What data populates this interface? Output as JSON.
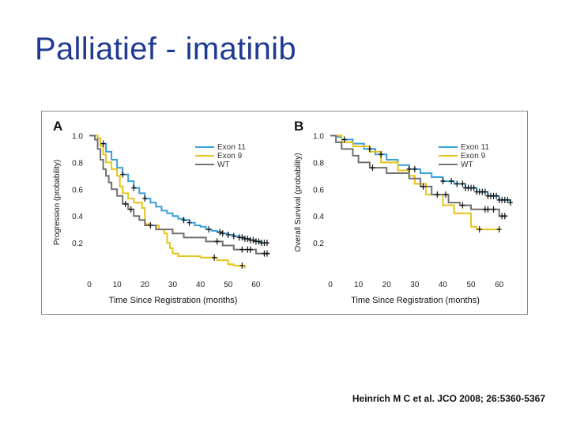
{
  "slide": {
    "title": "Palliatief - imatinib",
    "citation": "Heinrich M C et al. JCO 2008; 26:5360-5367"
  },
  "colors": {
    "exon11": "#3a9fd8",
    "exon9": "#e6c21a",
    "wt": "#707070",
    "censor": "#111111"
  },
  "chart_data": [
    {
      "type": "line",
      "panel_label": "A",
      "title": "",
      "xlabel": "Time Since Registration (months)",
      "ylabel": "Progression (probability)",
      "xlim": [
        0,
        66
      ],
      "ylim": [
        0,
        1.05
      ],
      "xticks": [
        0,
        10,
        20,
        30,
        40,
        50,
        60
      ],
      "yticks": [
        0.2,
        0.4,
        0.6,
        0.8,
        1.0
      ],
      "ytick_labels": [
        "0.2",
        "0.4",
        "0.6",
        "0.8",
        "1.0"
      ],
      "legend_position": "top-right",
      "series": [
        {
          "name": "Exon 11",
          "color_key": "exon11",
          "x": [
            0,
            3,
            4,
            6,
            8,
            10,
            12,
            14,
            16,
            18,
            20,
            22,
            24,
            26,
            28,
            30,
            32,
            34,
            36,
            38,
            40,
            42,
            44,
            46,
            48,
            50,
            52,
            54,
            56,
            58,
            60,
            62,
            64
          ],
          "y": [
            1.0,
            0.98,
            0.94,
            0.88,
            0.82,
            0.76,
            0.71,
            0.66,
            0.61,
            0.57,
            0.53,
            0.5,
            0.47,
            0.44,
            0.42,
            0.4,
            0.38,
            0.37,
            0.35,
            0.33,
            0.32,
            0.3,
            0.29,
            0.28,
            0.27,
            0.26,
            0.25,
            0.24,
            0.23,
            0.22,
            0.21,
            0.2,
            0.2
          ],
          "censor": [
            5,
            12,
            16,
            20,
            34,
            36,
            43,
            47,
            48,
            50,
            52,
            54,
            55,
            56,
            57,
            58,
            59,
            60,
            61,
            62,
            63,
            64
          ]
        },
        {
          "name": "Exon 9",
          "color_key": "exon9",
          "x": [
            0,
            3,
            4,
            5,
            6,
            8,
            10,
            11,
            12,
            14,
            16,
            19,
            20,
            22,
            25,
            27,
            28,
            29,
            30,
            32,
            34,
            36,
            40,
            46,
            50,
            52,
            56
          ],
          "y": [
            1.0,
            0.98,
            0.92,
            0.86,
            0.8,
            0.75,
            0.7,
            0.62,
            0.57,
            0.53,
            0.5,
            0.46,
            0.34,
            0.33,
            0.3,
            0.27,
            0.2,
            0.16,
            0.12,
            0.1,
            0.1,
            0.1,
            0.09,
            0.07,
            0.04,
            0.03,
            0.01
          ],
          "censor": [
            45,
            55
          ]
        },
        {
          "name": "WT",
          "color_key": "wt",
          "x": [
            0,
            2,
            3,
            4,
            5,
            6,
            7,
            8,
            10,
            12,
            14,
            16,
            18,
            20,
            24,
            30,
            34,
            42,
            48,
            52,
            60,
            65
          ],
          "y": [
            1.0,
            0.97,
            0.9,
            0.82,
            0.75,
            0.7,
            0.65,
            0.6,
            0.55,
            0.49,
            0.45,
            0.4,
            0.37,
            0.33,
            0.3,
            0.27,
            0.24,
            0.21,
            0.18,
            0.15,
            0.12,
            0.12
          ],
          "censor": [
            13,
            15,
            22,
            46,
            55,
            57,
            58,
            63,
            64
          ]
        }
      ]
    },
    {
      "type": "line",
      "panel_label": "B",
      "title": "",
      "xlabel": "Time Since Registration (months)",
      "ylabel": "Overall Survival (probability)",
      "xlim": [
        0,
        66
      ],
      "ylim": [
        0,
        1.05
      ],
      "xticks": [
        0,
        10,
        20,
        30,
        40,
        50,
        60
      ],
      "yticks": [
        0.2,
        0.4,
        0.6,
        0.8,
        1.0
      ],
      "ytick_labels": [
        "0.2",
        "0.4",
        "0.6",
        "0.8",
        "1.0"
      ],
      "legend_position": "top-right",
      "series": [
        {
          "name": "Exon 11",
          "color_key": "exon11",
          "x": [
            0,
            2,
            4,
            8,
            12,
            16,
            20,
            24,
            28,
            32,
            36,
            40,
            44,
            48,
            52,
            56,
            60,
            64
          ],
          "y": [
            1.0,
            0.99,
            0.97,
            0.94,
            0.9,
            0.86,
            0.82,
            0.78,
            0.75,
            0.72,
            0.69,
            0.66,
            0.64,
            0.61,
            0.58,
            0.55,
            0.52,
            0.5
          ],
          "censor": [
            5,
            14,
            18,
            28,
            30,
            40,
            43,
            45,
            47,
            48,
            49,
            50,
            51,
            52,
            53,
            54,
            55,
            56,
            57,
            58,
            59,
            60,
            61,
            62,
            63,
            64
          ]
        },
        {
          "name": "Exon 9",
          "color_key": "exon9",
          "x": [
            0,
            4,
            8,
            14,
            18,
            24,
            28,
            30,
            34,
            40,
            44,
            50,
            52,
            56,
            60
          ],
          "y": [
            1.0,
            0.95,
            0.92,
            0.88,
            0.8,
            0.74,
            0.7,
            0.64,
            0.56,
            0.48,
            0.42,
            0.32,
            0.3,
            0.3,
            0.3
          ],
          "censor": [
            53,
            60
          ]
        },
        {
          "name": "WT",
          "color_key": "wt",
          "x": [
            0,
            2,
            4,
            8,
            10,
            14,
            20,
            28,
            32,
            36,
            42,
            46,
            50,
            55,
            60,
            63
          ],
          "y": [
            1.0,
            0.95,
            0.9,
            0.85,
            0.8,
            0.76,
            0.72,
            0.68,
            0.62,
            0.56,
            0.5,
            0.48,
            0.45,
            0.45,
            0.4,
            0.4
          ],
          "censor": [
            15,
            33,
            38,
            41,
            47,
            55,
            56,
            58,
            61,
            62
          ]
        }
      ]
    }
  ]
}
